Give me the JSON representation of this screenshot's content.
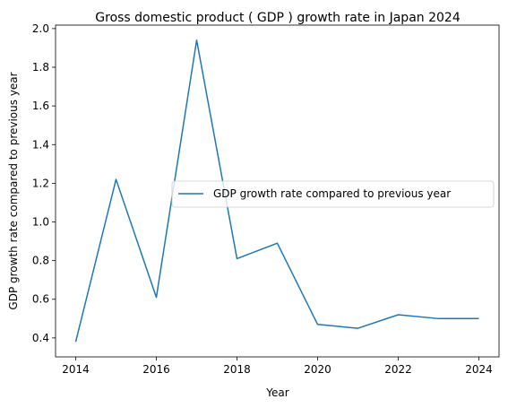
{
  "chart_data": {
    "type": "line",
    "title": "Gross domestic product ( GDP ) growth rate in Japan 2024",
    "xlabel": "Year",
    "ylabel": "GDP growth rate compared to previous year",
    "x": [
      2014,
      2015,
      2016,
      2017,
      2018,
      2019,
      2020,
      2021,
      2022,
      2023,
      2024
    ],
    "series": [
      {
        "name": "GDP growth rate compared to previous year",
        "values": [
          0.38,
          1.22,
          0.61,
          1.94,
          0.81,
          0.89,
          0.47,
          0.45,
          0.52,
          0.5,
          0.5
        ],
        "color": "#1f77b4"
      }
    ],
    "xlim": [
      2013.5,
      2024.5
    ],
    "ylim": [
      0.302,
      2.018
    ],
    "xticks": [
      "2014",
      "2016",
      "2018",
      "2020",
      "2022",
      "2024"
    ],
    "yticks": [
      "0.4",
      "0.6",
      "0.8",
      "1.0",
      "1.2",
      "1.4",
      "1.6",
      "1.8",
      "2.0"
    ],
    "grid": false,
    "legend_position": "center-right"
  }
}
